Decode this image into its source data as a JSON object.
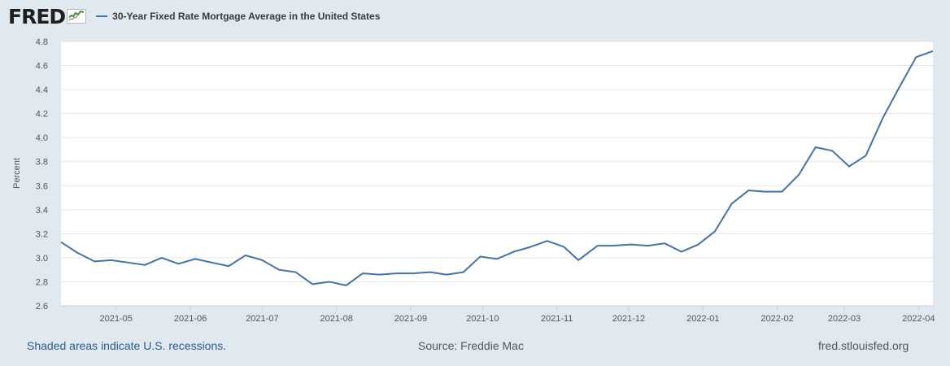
{
  "header": {
    "logo_text": "FRED",
    "legend_label": "30-Year Fixed Rate Mortgage Average in the United States"
  },
  "footer": {
    "recession_note": "Shaded areas indicate U.S. recessions.",
    "source": "Source: Freddie Mac",
    "site": "fred.stlouisfed.org"
  },
  "colors": {
    "series": "#4572a7",
    "plot_background": "#ffffff",
    "page_background": "#e1e9f0",
    "grid": "#e6e6e6"
  },
  "chart_data": {
    "type": "line",
    "title": "",
    "ylabel": "Percent",
    "xlabel": "",
    "ylim": [
      2.6,
      4.8
    ],
    "xlim": [
      "2021-04-08",
      "2022-04-07"
    ],
    "grid": true,
    "yticks": [
      "2.6",
      "2.8",
      "3.0",
      "3.2",
      "3.4",
      "3.6",
      "3.8",
      "4.0",
      "4.2",
      "4.4",
      "4.6",
      "4.8"
    ],
    "xticks": [
      {
        "label": "2021-05",
        "date": "2021-05-01"
      },
      {
        "label": "2021-06",
        "date": "2021-06-01"
      },
      {
        "label": "2021-07",
        "date": "2021-07-01"
      },
      {
        "label": "2021-08",
        "date": "2021-08-01"
      },
      {
        "label": "2021-09",
        "date": "2021-09-01"
      },
      {
        "label": "2021-10",
        "date": "2021-10-01"
      },
      {
        "label": "2021-11",
        "date": "2021-11-01"
      },
      {
        "label": "2021-12",
        "date": "2021-12-01"
      },
      {
        "label": "2022-01",
        "date": "2022-01-01"
      },
      {
        "label": "2022-02",
        "date": "2022-02-01"
      },
      {
        "label": "2022-03",
        "date": "2022-03-01"
      },
      {
        "label": "2022-04",
        "date": "2022-04-01"
      }
    ],
    "series": [
      {
        "name": "30-Year Fixed Rate Mortgage Average in the United States",
        "color": "#4572a7",
        "x": [
          "2021-04-08",
          "2021-04-15",
          "2021-04-22",
          "2021-04-29",
          "2021-05-06",
          "2021-05-13",
          "2021-05-20",
          "2021-05-27",
          "2021-06-03",
          "2021-06-10",
          "2021-06-17",
          "2021-06-24",
          "2021-07-01",
          "2021-07-08",
          "2021-07-15",
          "2021-07-22",
          "2021-07-29",
          "2021-08-05",
          "2021-08-12",
          "2021-08-19",
          "2021-08-26",
          "2021-09-02",
          "2021-09-09",
          "2021-09-16",
          "2021-09-23",
          "2021-09-30",
          "2021-10-07",
          "2021-10-14",
          "2021-10-21",
          "2021-10-28",
          "2021-11-04",
          "2021-11-10",
          "2021-11-18",
          "2021-11-24",
          "2021-12-02",
          "2021-12-09",
          "2021-12-16",
          "2021-12-23",
          "2021-12-30",
          "2022-01-06",
          "2022-01-13",
          "2022-01-20",
          "2022-01-27",
          "2022-02-03",
          "2022-02-10",
          "2022-02-17",
          "2022-02-24",
          "2022-03-03",
          "2022-03-10",
          "2022-03-17",
          "2022-03-24",
          "2022-03-31",
          "2022-04-07"
        ],
        "values": [
          3.13,
          3.04,
          2.97,
          2.98,
          2.96,
          2.94,
          3.0,
          2.95,
          2.99,
          2.96,
          2.93,
          3.02,
          2.98,
          2.9,
          2.88,
          2.78,
          2.8,
          2.77,
          2.87,
          2.86,
          2.87,
          2.87,
          2.88,
          2.86,
          2.88,
          3.01,
          2.99,
          3.05,
          3.09,
          3.14,
          3.09,
          2.98,
          3.1,
          3.1,
          3.11,
          3.1,
          3.12,
          3.05,
          3.11,
          3.22,
          3.45,
          3.56,
          3.55,
          3.55,
          3.69,
          3.92,
          3.89,
          3.76,
          3.85,
          4.16,
          4.42,
          4.67,
          4.72
        ]
      }
    ]
  }
}
